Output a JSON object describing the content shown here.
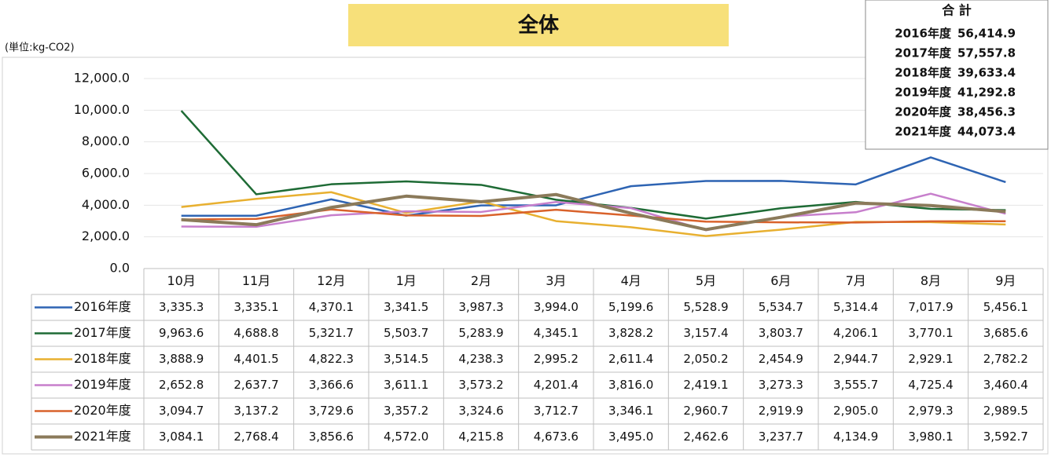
{
  "chart_data": {
    "type": "line",
    "title": "全体",
    "unit_label": "(単位:kg-CO2)",
    "categories": [
      "10月",
      "11月",
      "12月",
      "1月",
      "2月",
      "3月",
      "4月",
      "5月",
      "6月",
      "7月",
      "8月",
      "9月"
    ],
    "ylim": [
      0,
      12000
    ],
    "yticks": [
      {
        "value": 0,
        "label": "0.0"
      },
      {
        "value": 2000,
        "label": "2,000.0"
      },
      {
        "value": 4000,
        "label": "4,000.0"
      },
      {
        "value": 6000,
        "label": "6,000.0"
      },
      {
        "value": 8000,
        "label": "8,000.0"
      },
      {
        "value": 10000,
        "label": "10,000.0"
      },
      {
        "value": 12000,
        "label": "12,000.0"
      }
    ],
    "grid": true,
    "series": [
      {
        "name": "2016年度",
        "color": "#2e64b3",
        "values": [
          3335.3,
          3335.1,
          4370.1,
          3341.5,
          3987.3,
          3994.0,
          5199.6,
          5528.9,
          5534.7,
          5314.4,
          7017.9,
          5456.1
        ],
        "value_labels": [
          "3,335.3",
          "3,335.1",
          "4,370.1",
          "3,341.5",
          "3,987.3",
          "3,994.0",
          "5,199.6",
          "5,528.9",
          "5,534.7",
          "5,314.4",
          "7,017.9",
          "5,456.1"
        ]
      },
      {
        "name": "2017年度",
        "color": "#1e6b35",
        "values": [
          9963.6,
          4688.8,
          5321.7,
          5503.7,
          5283.9,
          4345.1,
          3828.2,
          3157.4,
          3803.7,
          4206.1,
          3770.1,
          3685.6
        ],
        "value_labels": [
          "9,963.6",
          "4,688.8",
          "5,321.7",
          "5,503.7",
          "5,283.9",
          "4,345.1",
          "3,828.2",
          "3,157.4",
          "3,803.7",
          "4,206.1",
          "3,770.1",
          "3,685.6"
        ]
      },
      {
        "name": "2018年度",
        "color": "#e8b030",
        "values": [
          3888.9,
          4401.5,
          4822.3,
          3514.5,
          4238.3,
          2995.2,
          2611.4,
          2050.2,
          2454.9,
          2944.7,
          2929.1,
          2782.2
        ],
        "value_labels": [
          "3,888.9",
          "4,401.5",
          "4,822.3",
          "3,514.5",
          "4,238.3",
          "2,995.2",
          "2,611.4",
          "2,050.2",
          "2,454.9",
          "2,944.7",
          "2,929.1",
          "2,782.2"
        ]
      },
      {
        "name": "2019年度",
        "color": "#c77fcc",
        "values": [
          2652.8,
          2637.7,
          3366.6,
          3611.1,
          3573.2,
          4201.4,
          3816.0,
          2419.1,
          3273.3,
          3555.7,
          4725.4,
          3460.4
        ],
        "value_labels": [
          "2,652.8",
          "2,637.7",
          "3,366.6",
          "3,611.1",
          "3,573.2",
          "4,201.4",
          "3,816.0",
          "2,419.1",
          "3,273.3",
          "3,555.7",
          "4,725.4",
          "3,460.4"
        ]
      },
      {
        "name": "2020年度",
        "color": "#d9622b",
        "values": [
          3094.7,
          3137.2,
          3729.6,
          3357.2,
          3324.6,
          3712.7,
          3346.1,
          2960.7,
          2919.9,
          2905.0,
          2979.3,
          2989.5
        ],
        "value_labels": [
          "3,094.7",
          "3,137.2",
          "3,729.6",
          "3,357.2",
          "3,324.6",
          "3,712.7",
          "3,346.1",
          "2,960.7",
          "2,919.9",
          "2,905.0",
          "2,979.3",
          "2,989.5"
        ]
      },
      {
        "name": "2021年度",
        "color": "#8b7a5a",
        "values": [
          3084.1,
          2768.4,
          3856.6,
          4572.0,
          4215.8,
          4673.6,
          3495.0,
          2462.6,
          3237.7,
          4134.9,
          3980.1,
          3592.7
        ],
        "value_labels": [
          "3,084.1",
          "2,768.4",
          "3,856.6",
          "4,572.0",
          "4,215.8",
          "4,673.6",
          "3,495.0",
          "2,462.6",
          "3,237.7",
          "4,134.9",
          "3,980.1",
          "3,592.7"
        ]
      }
    ]
  },
  "totals": {
    "title": "合 計",
    "rows": [
      {
        "label": "2016年度",
        "value": "56,414.9"
      },
      {
        "label": "2017年度",
        "value": "57,557.8"
      },
      {
        "label": "2018年度",
        "value": "39,633.4"
      },
      {
        "label": "2019年度",
        "value": "41,292.8"
      },
      {
        "label": "2020年度",
        "value": "38,456.3"
      },
      {
        "label": "2021年度",
        "value": "44,073.4"
      }
    ]
  }
}
